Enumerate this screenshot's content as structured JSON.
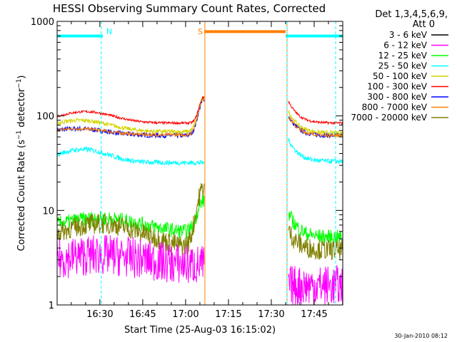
{
  "chart_data": {
    "type": "line",
    "title": "HESSI Observing Summary Count Rates, Corrected",
    "xlabel": "Start Time (25-Aug-03 16:15:02)",
    "ylabel": "Corrected Count Rate (s⁻¹ detector⁻¹)",
    "ylabel_parts": [
      "Corrected Count Rate (s",
      "−1",
      " detector",
      "−1",
      ")"
    ],
    "y_scale": "log",
    "ylim": [
      1,
      1000
    ],
    "y_ticks": [
      {
        "label": "1",
        "value": 1
      },
      {
        "label": "10",
        "value": 10
      },
      {
        "label": "100",
        "value": 100
      },
      {
        "label": "1000",
        "value": 1000
      }
    ],
    "x_units": "minutes",
    "xlim": [
      "16:15:02",
      "17:55:00"
    ],
    "x_ticks": [
      "16:30",
      "16:45",
      "17:00",
      "17:15",
      "17:30",
      "17:45"
    ],
    "legend_title": "Det 1,3,4,5,6,9,",
    "legend_subtitle": "Att 0",
    "legend_position": "right",
    "series": [
      {
        "name": "3 - 6 keV",
        "color": "#000000"
      },
      {
        "name": "6 - 12 keV",
        "color": "#ff00ff"
      },
      {
        "name": "12 - 25 keV",
        "color": "#00ff00"
      },
      {
        "name": "25 - 50 keV",
        "color": "#00ffff"
      },
      {
        "name": "50 - 100 keV",
        "color": "#d4d400"
      },
      {
        "name": "100 - 300 keV",
        "color": "#ff0000"
      },
      {
        "name": "300 - 800 keV",
        "color": "#0000ff"
      },
      {
        "name": "800 - 7000 keV",
        "color": "#ff8000"
      },
      {
        "name": "7000 - 20000 keV",
        "color": "#808000"
      }
    ],
    "segments": [
      {
        "start": "16:15:02",
        "end": "17:06:30"
      },
      {
        "start": "17:36:00",
        "end": "17:55:00"
      }
    ],
    "flag_bars": [
      {
        "label": "N",
        "start": "16:15:02",
        "end": "16:31:00",
        "level": 700,
        "color": "#00ffff"
      },
      {
        "label": "S",
        "start": "17:06:30",
        "end": "17:35:00",
        "level": 780,
        "color": "#ff8000"
      },
      {
        "label": "",
        "start": "17:35:00",
        "end": "17:55:00",
        "level": 700,
        "color": "#00ffff"
      }
    ],
    "markers": [
      {
        "time": "16:30:30",
        "color": "#00ffff",
        "style": "dashed"
      },
      {
        "time": "17:06:45",
        "color": "#ff8000",
        "style": "solid"
      },
      {
        "time": "17:35:30",
        "color": "#ff8000",
        "style": "solid"
      },
      {
        "time": "17:35:30",
        "color": "#00ffff",
        "style": "dashed"
      },
      {
        "time": "17:52:30",
        "color": "#00ffff",
        "style": "dashed"
      }
    ],
    "timestamp": "30-Jan-2010 08:12"
  }
}
